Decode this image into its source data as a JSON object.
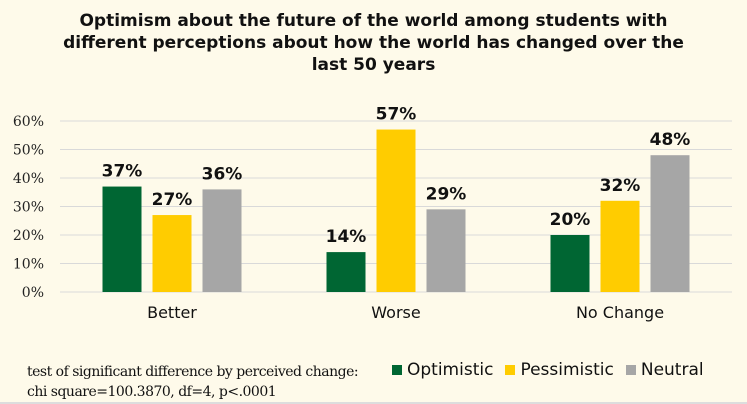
{
  "chart_data": {
    "type": "bar",
    "title_lines": [
      "Optimism about the future of the world among students with",
      "different perceptions about how the world has changed over the",
      "last 50 years"
    ],
    "categories": [
      "Better",
      "Worse",
      "No Change"
    ],
    "series": [
      {
        "name": "Optimistic",
        "color": "#006633",
        "values": [
          37,
          14,
          20
        ],
        "labels": [
          "37%",
          "14%",
          "20%"
        ]
      },
      {
        "name": "Pessimistic",
        "color": "#ffcc00",
        "values": [
          27,
          57,
          32
        ],
        "labels": [
          "27%",
          "57%",
          "32%"
        ]
      },
      {
        "name": "Neutral",
        "color": "#a6a6a6",
        "values": [
          36,
          29,
          48
        ],
        "labels": [
          "36%",
          "29%",
          "48%"
        ]
      }
    ],
    "ylim": [
      0,
      60
    ],
    "yticks": [
      0,
      10,
      20,
      30,
      40,
      50,
      60
    ],
    "ytick_labels": [
      "0%",
      "10%",
      "20%",
      "30%",
      "40%",
      "50%",
      "60%"
    ],
    "grid": true,
    "legend_position": "bottom-right",
    "note_lines": [
      "test of significant difference by perceived change:",
      "chi square=100.3870, df=4, p<.0001"
    ]
  }
}
